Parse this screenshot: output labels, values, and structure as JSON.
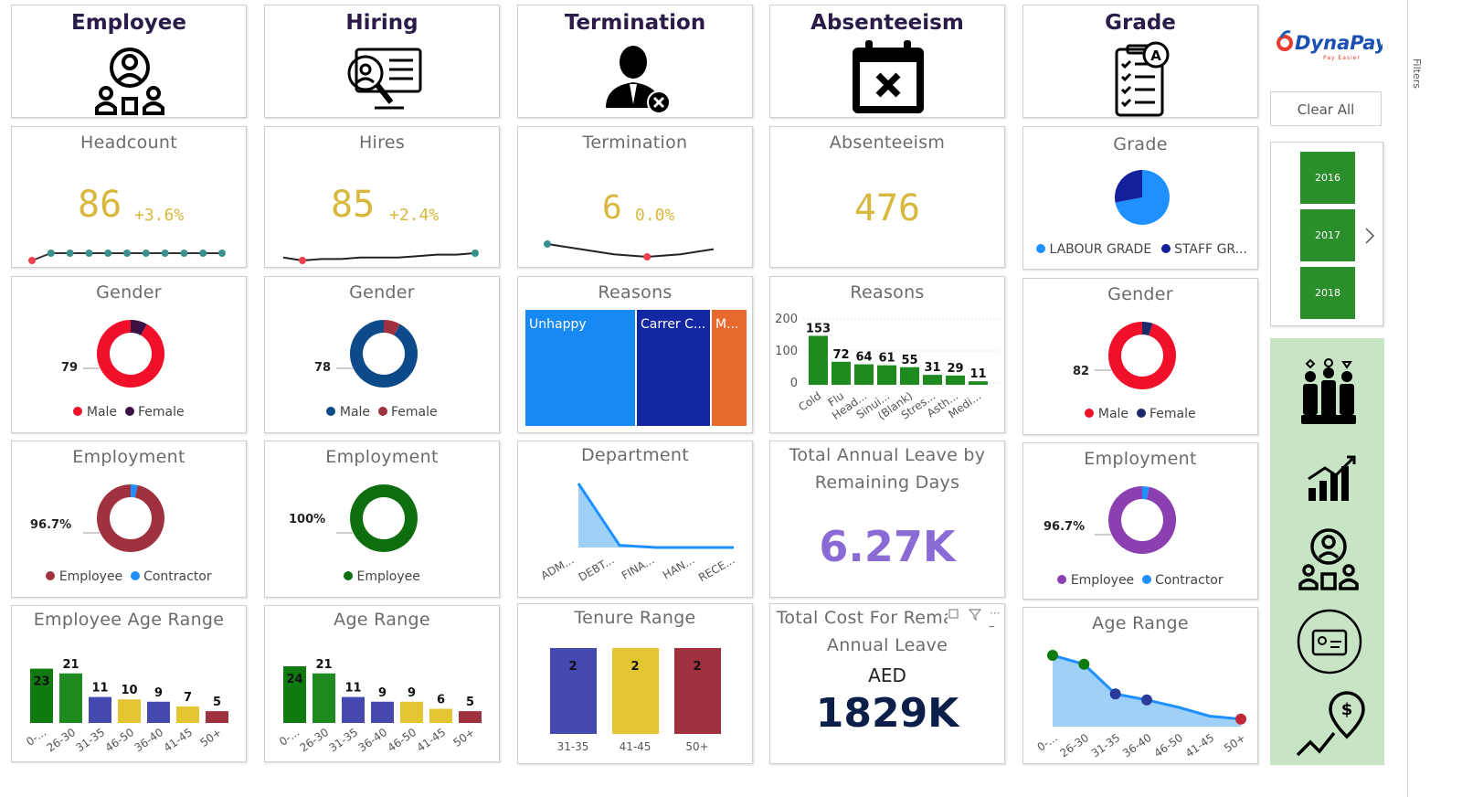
{
  "headers": [
    {
      "title": "Employee",
      "icon": "employee-group-icon"
    },
    {
      "title": "Hiring",
      "icon": "hiring-search-icon"
    },
    {
      "title": "Termination",
      "icon": "termination-person-icon"
    },
    {
      "title": "Absenteeism",
      "icon": "absent-calendar-icon"
    },
    {
      "title": "Grade",
      "icon": "grade-checklist-icon"
    }
  ],
  "brand": {
    "logo_text": "DynaPay",
    "tagline": "Pay Easier"
  },
  "filters_pane": {
    "label": "Filters"
  },
  "clear_all": "Clear All",
  "years": [
    "2016",
    "2017",
    "2018"
  ],
  "colors": {
    "kpi": "#d8b83c",
    "green": "#1f8a1f",
    "navy": "#0c2a66",
    "red": "#f0102a",
    "purple": "#8c3fb0",
    "maroon": "#a0313f",
    "blue": "#1e90ff"
  },
  "kpis": {
    "headcount": {
      "title": "Headcount",
      "value": "86",
      "delta": "+3.6%"
    },
    "hires": {
      "title": "Hires",
      "value": "85",
      "delta": "+2.4%"
    },
    "termination": {
      "title": "Termination",
      "value": "6",
      "delta": "0.0%"
    },
    "absenteeism": {
      "title": "Absenteeism",
      "value": "476"
    }
  },
  "grade": {
    "title": "Grade",
    "legend": [
      "LABOUR GRADE",
      "STAFF GR..."
    ],
    "values": [
      {
        "name": "LABOUR GRADE",
        "share": 0.72
      },
      {
        "name": "STAFF GR...",
        "share": 0.28
      }
    ]
  },
  "gender": [
    {
      "title": "Gender",
      "label": "79",
      "legend": [
        "Male",
        "Female"
      ],
      "colors": [
        "#f0102a",
        "#3a1045"
      ],
      "male_share": 0.92
    },
    {
      "title": "Gender",
      "label": "78",
      "legend": [
        "Male",
        "Female"
      ],
      "colors": [
        "#0c4a8a",
        "#a0313f"
      ],
      "male_share": 0.92
    },
    {
      "title": "Gender",
      "label": "82",
      "legend": [
        "Male",
        "Female"
      ],
      "colors": [
        "#f0102a",
        "#1a2a6a"
      ],
      "male_share": 0.95
    }
  ],
  "reasons_treemap": {
    "title": "Reasons",
    "items": [
      {
        "label": "Unhappy",
        "color": "#1789f3"
      },
      {
        "label": "Carrer C...",
        "color": "#1327a3"
      },
      {
        "label": "M...",
        "color": "#e8692e"
      }
    ]
  },
  "reasons_bar": {
    "title": "Reasons",
    "yticks": [
      "200",
      "100",
      "0"
    ],
    "values": [
      "153",
      "72",
      "64",
      "61",
      "55",
      "31",
      "29",
      "11"
    ],
    "categories": [
      "Cold",
      "Flu",
      "Head...",
      "Sinui...",
      "(Blank)",
      "Stres...",
      "Asth...",
      "Medi..."
    ]
  },
  "employment": [
    {
      "title": "Employment",
      "label": "96.7%",
      "legend": [
        "Employee",
        "Contractor"
      ],
      "colors": [
        "#a0313f",
        "#1e90ff"
      ]
    },
    {
      "title": "Employment",
      "label": "100%",
      "legend": [
        "Employee"
      ],
      "colors": [
        "#0c6e0c"
      ]
    },
    {
      "title": "Employment",
      "label": "96.7%",
      "legend": [
        "Employee",
        "Contractor"
      ],
      "colors": [
        "#8c3fb0",
        "#1e90ff"
      ]
    }
  ],
  "department": {
    "title": "Department",
    "categories": [
      "ADM...",
      "DEBT...",
      "FINA...",
      "HAN...",
      "RECE..."
    ]
  },
  "leave_remaining": {
    "title": [
      "Total Annual Leave by",
      "Remaining Days"
    ],
    "value": "6.27K"
  },
  "leave_cost": {
    "title": [
      "Total Cost For Remaining",
      "Annual Leave"
    ],
    "currency": "AED",
    "value": "1829K"
  },
  "emp_age": {
    "title": "Employee Age Range",
    "values": [
      "23",
      "21",
      "11",
      "10",
      "9",
      "7",
      "5"
    ],
    "categories": [
      "0-...",
      "26-30",
      "31-35",
      "46-50",
      "36-40",
      "41-45",
      "50+"
    ]
  },
  "hire_age": {
    "title": "Age Range",
    "values": [
      "24",
      "21",
      "11",
      "9",
      "9",
      "6",
      "5"
    ],
    "categories": [
      "0-...",
      "26-30",
      "31-35",
      "36-40",
      "46-50",
      "41-45",
      "50+"
    ]
  },
  "tenure": {
    "title": "Tenure Range",
    "values": [
      "2",
      "2",
      "2"
    ],
    "categories": [
      "31-35",
      "41-45",
      "50+"
    ]
  },
  "grade_age": {
    "title": "Age Range",
    "categories": [
      "0-...",
      "26-30",
      "31-35",
      "36-40",
      "46-50",
      "41-45",
      "50+"
    ]
  },
  "nav_icons": [
    "people-group-icon",
    "growth-chart-icon",
    "employee-group-icon",
    "id-card-icon",
    "money-growth-icon"
  ],
  "chart_data": [
    {
      "type": "line",
      "title": "Headcount",
      "values": [
        80,
        82,
        82,
        82,
        83,
        83,
        83,
        84,
        84,
        85,
        86
      ]
    },
    {
      "type": "line",
      "title": "Hires",
      "values": [
        82,
        80,
        81,
        81,
        82,
        82,
        82,
        83,
        84,
        84,
        85
      ]
    },
    {
      "type": "line",
      "title": "Termination",
      "values": [
        6,
        5.6,
        5.2,
        5.0,
        5.2,
        5.6
      ]
    },
    {
      "type": "bar",
      "title": "Reasons",
      "categories": [
        "Cold",
        "Flu",
        "Head...",
        "Sinui...",
        "(Blank)",
        "Stres...",
        "Asth...",
        "Medi..."
      ],
      "values": [
        153,
        72,
        64,
        61,
        55,
        31,
        29,
        11
      ],
      "ylim": [
        0,
        200
      ]
    },
    {
      "type": "area",
      "title": "Department",
      "categories": [
        "ADM...",
        "DEBT...",
        "FINA...",
        "HAN...",
        "RECE..."
      ],
      "values": [
        60,
        2,
        0,
        0,
        0
      ]
    },
    {
      "type": "bar",
      "title": "Employee Age Range",
      "categories": [
        "0-...",
        "26-30",
        "31-35",
        "46-50",
        "36-40",
        "41-45",
        "50+"
      ],
      "values": [
        23,
        21,
        11,
        10,
        9,
        7,
        5
      ]
    },
    {
      "type": "bar",
      "title": "Age Range",
      "categories": [
        "0-...",
        "26-30",
        "31-35",
        "36-40",
        "46-50",
        "41-45",
        "50+"
      ],
      "values": [
        24,
        21,
        11,
        9,
        9,
        6,
        5
      ]
    },
    {
      "type": "bar",
      "title": "Tenure Range",
      "categories": [
        "31-35",
        "41-45",
        "50+"
      ],
      "values": [
        2,
        2,
        2
      ]
    },
    {
      "type": "area",
      "title": "Age Range",
      "categories": [
        "0-...",
        "26-30",
        "31-35",
        "36-40",
        "46-50",
        "41-45",
        "50+"
      ],
      "values": [
        24,
        21,
        11,
        9,
        9,
        6,
        5
      ]
    }
  ]
}
